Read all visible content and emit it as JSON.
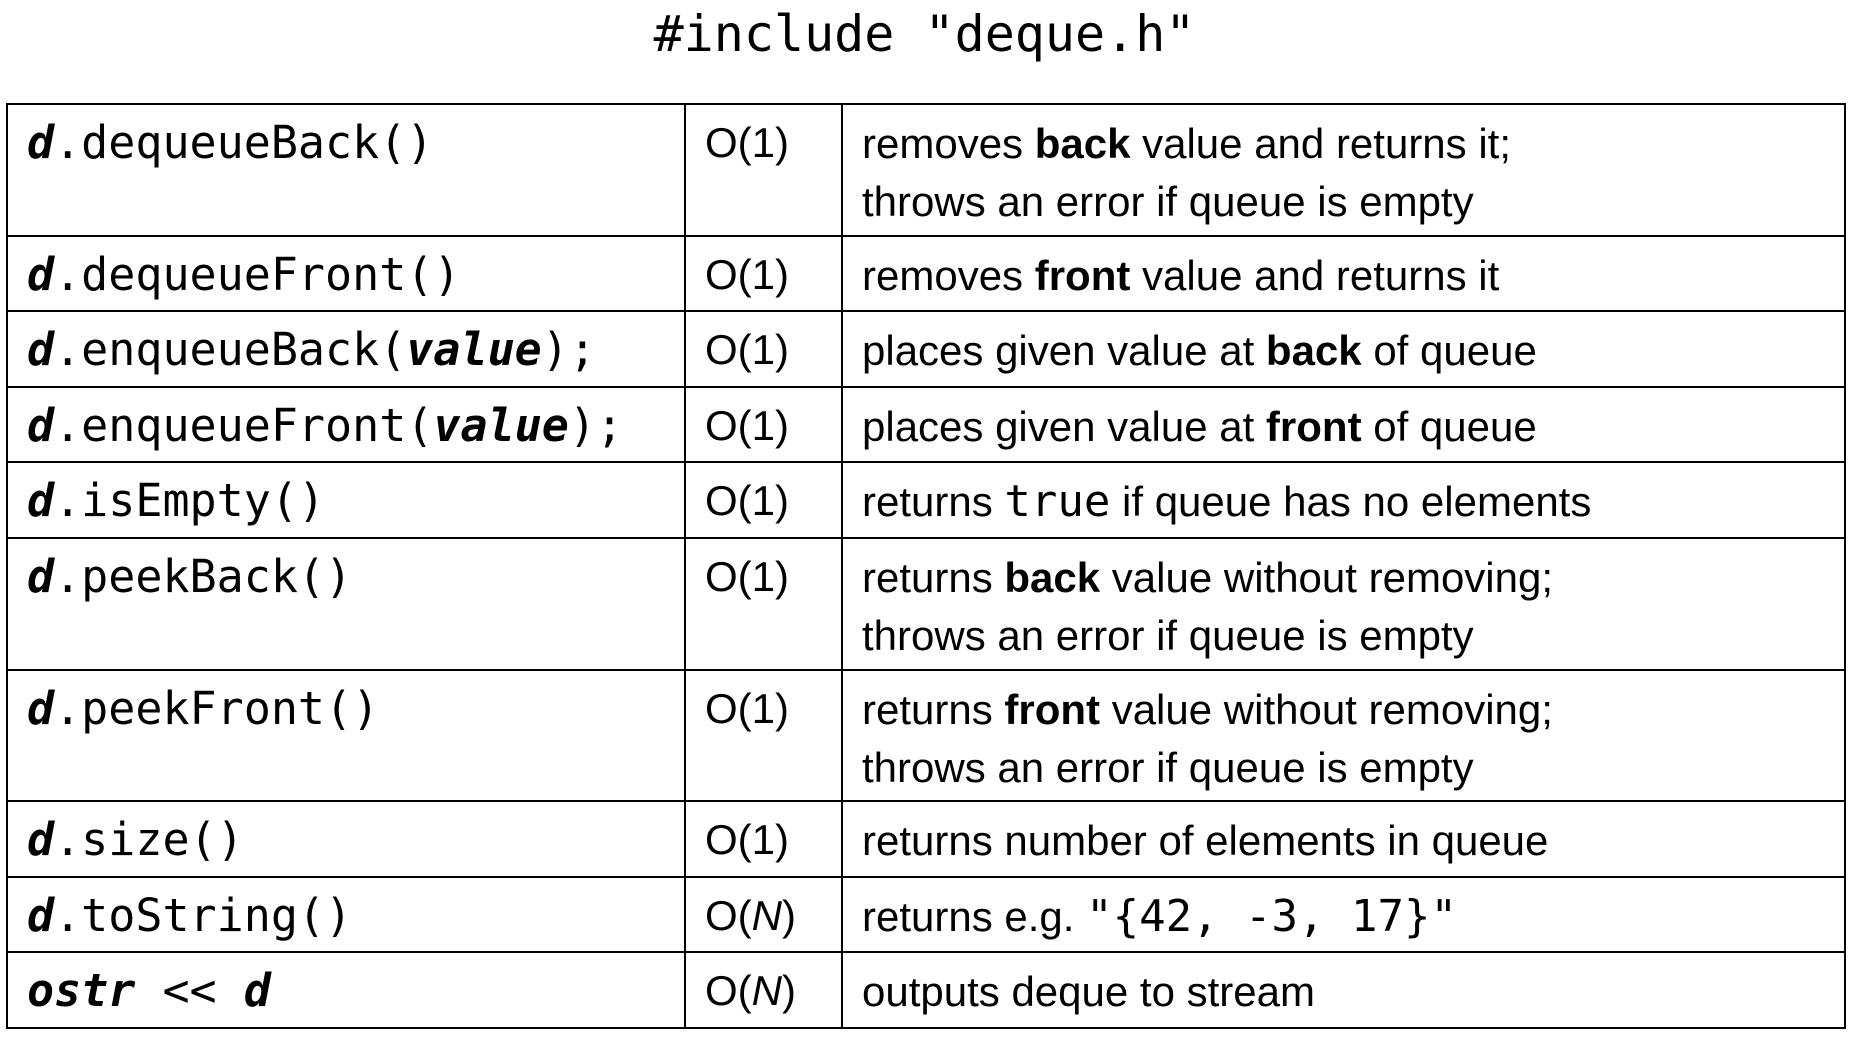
{
  "title": "#include \"deque.h\"",
  "rows": [
    {
      "obj": "d",
      "method": ".dequeueBack()",
      "arg": "",
      "tail": "",
      "cost_prefix": "O(1",
      "cost_n": "",
      "cost_suffix": ")",
      "desc_pre": "removes ",
      "desc_bold": "back",
      "desc_post": " value and returns it;",
      "desc_line2": "throws an error if queue is empty"
    },
    {
      "obj": "d",
      "method": ".dequeueFront()",
      "arg": "",
      "tail": "",
      "cost_prefix": "O(1",
      "cost_n": "",
      "cost_suffix": ")",
      "desc_pre": "removes ",
      "desc_bold": "front",
      "desc_post": " value and returns it",
      "desc_line2": ""
    },
    {
      "obj": "d",
      "method": ".enqueueBack(",
      "arg": "value",
      "tail": ");",
      "cost_prefix": "O(1",
      "cost_n": "",
      "cost_suffix": ")",
      "desc_pre": "places given value at ",
      "desc_bold": "back",
      "desc_post": " of queue",
      "desc_line2": ""
    },
    {
      "obj": "d",
      "method": ".enqueueFront(",
      "arg": "value",
      "tail": ");",
      "cost_prefix": "O(1",
      "cost_n": "",
      "cost_suffix": ")",
      "desc_pre": "places given value at ",
      "desc_bold": "front",
      "desc_post": " of queue",
      "desc_line2": ""
    },
    {
      "obj": "d",
      "method": ".isEmpty()",
      "arg": "",
      "tail": "",
      "cost_prefix": "O(1",
      "cost_n": "",
      "cost_suffix": ")",
      "desc_pre": "returns ",
      "desc_mono": "true",
      "desc_post": " if queue has no elements",
      "desc_line2": ""
    },
    {
      "obj": "d",
      "method": ".peekBack()",
      "arg": "",
      "tail": "",
      "cost_prefix": "O(1",
      "cost_n": "",
      "cost_suffix": ")",
      "desc_pre": "returns ",
      "desc_bold": "back",
      "desc_post": " value without removing;",
      "desc_line2": "throws an error if queue is empty"
    },
    {
      "obj": "d",
      "method": ".peekFront()",
      "arg": "",
      "tail": "",
      "cost_prefix": "O(1",
      "cost_n": "",
      "cost_suffix": ")",
      "desc_pre": "returns ",
      "desc_bold": "front",
      "desc_post": " value without removing;",
      "desc_line2": "throws an error if queue is empty"
    },
    {
      "obj": "d",
      "method": ".size()",
      "arg": "",
      "tail": "",
      "cost_prefix": "O(1",
      "cost_n": "",
      "cost_suffix": ")",
      "desc_pre": "returns number of elements in queue",
      "desc_post": "",
      "desc_line2": ""
    },
    {
      "obj": "d",
      "method": ".toString()",
      "arg": "",
      "tail": "",
      "cost_prefix": "O(",
      "cost_n": "N",
      "cost_suffix": ")",
      "desc_pre": "returns e.g. ",
      "desc_mono": "\"{42, -3, 17}\"",
      "desc_post": "",
      "desc_line2": ""
    },
    {
      "obj": "ostr",
      "method": " << ",
      "arg": "d",
      "tail": "",
      "cost_prefix": "O(",
      "cost_n": "N",
      "cost_suffix": ")",
      "desc_pre": "outputs deque to stream",
      "desc_post": "",
      "desc_line2": ""
    }
  ]
}
